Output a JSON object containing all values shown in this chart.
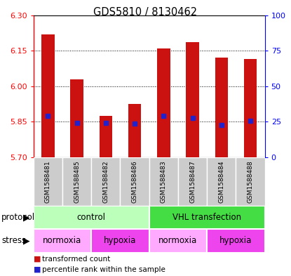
{
  "title": "GDS5810 / 8130462",
  "samples": [
    "GSM1588481",
    "GSM1588485",
    "GSM1588482",
    "GSM1588486",
    "GSM1588483",
    "GSM1588487",
    "GSM1588484",
    "GSM1588488"
  ],
  "bar_tops": [
    6.22,
    6.03,
    5.875,
    5.925,
    6.16,
    6.185,
    6.12,
    6.115
  ],
  "bar_bottoms": [
    5.7,
    5.7,
    5.7,
    5.7,
    5.7,
    5.7,
    5.7,
    5.7
  ],
  "percentile_values": [
    5.875,
    5.845,
    5.845,
    5.842,
    5.875,
    5.865,
    5.835,
    5.855
  ],
  "ylim": [
    5.7,
    6.3
  ],
  "yticks_left": [
    5.7,
    5.85,
    6.0,
    6.15,
    6.3
  ],
  "yticks_right": [
    0,
    25,
    50,
    75,
    100
  ],
  "bar_color": "#cc1111",
  "percentile_color": "#2222cc",
  "protocol_groups": [
    {
      "label": "control",
      "start": 0,
      "end": 4,
      "color": "#bbffbb"
    },
    {
      "label": "VHL transfection",
      "start": 4,
      "end": 8,
      "color": "#44dd44"
    }
  ],
  "stress_groups": [
    {
      "label": "normoxia",
      "start": 0,
      "end": 2,
      "color": "#ffaaff"
    },
    {
      "label": "hypoxia",
      "start": 2,
      "end": 4,
      "color": "#ee44ee"
    },
    {
      "label": "normoxia",
      "start": 4,
      "end": 6,
      "color": "#ffaaff"
    },
    {
      "label": "hypoxia",
      "start": 6,
      "end": 8,
      "color": "#ee44ee"
    }
  ],
  "legend_red_label": "transformed count",
  "legend_blue_label": "percentile rank within the sample",
  "protocol_label": "protocol",
  "stress_label": "stress"
}
